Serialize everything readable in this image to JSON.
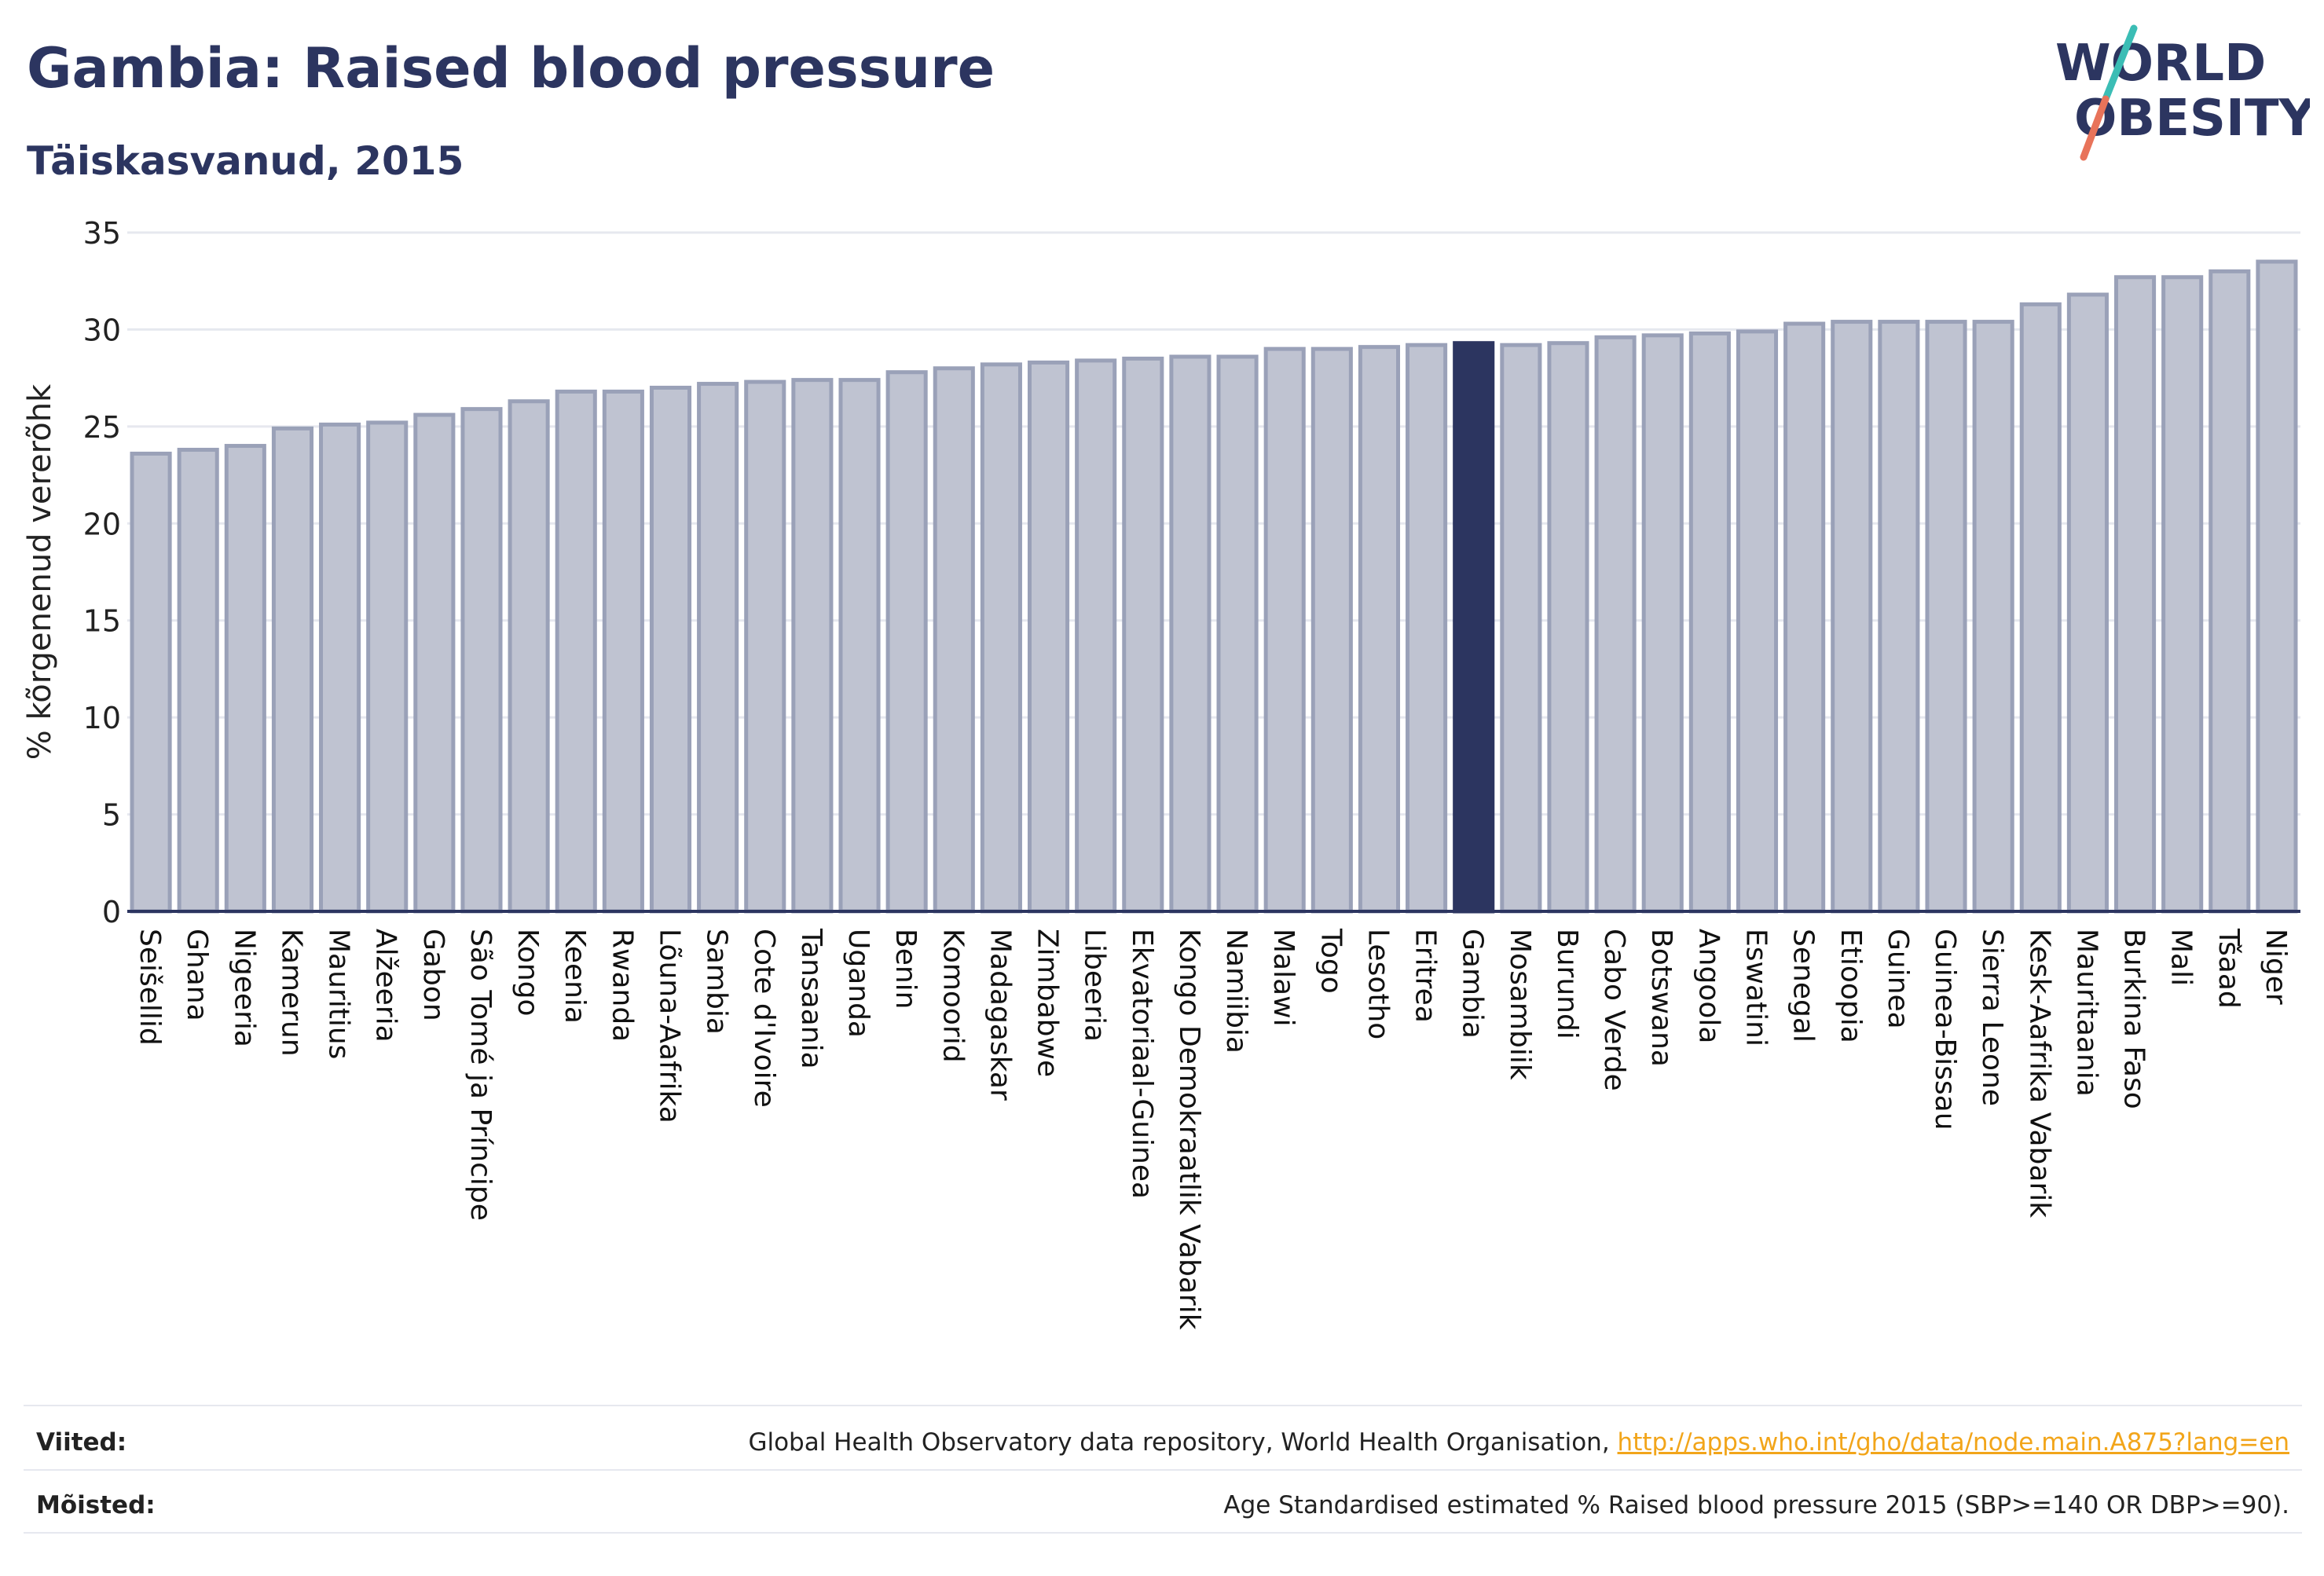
{
  "header": {
    "title": "Gambia: Raised blood pressure",
    "subtitle": "Täiskasvanud, 2015"
  },
  "logo": {
    "line1": "WORLD",
    "line2": "OBESITY",
    "colors": {
      "text": "#2c3560",
      "slash_top": "#3bbdb5",
      "slash_bottom": "#e8735a"
    }
  },
  "footer": {
    "sources_label": "Viited:",
    "sources_text": "Global Health Observatory data repository, World Health Organisation, ",
    "sources_link": "http://apps.who.int/gho/data/node.main.A875?lang=en",
    "definitions_label": "Mõisted:",
    "definitions_text": "Age Standardised estimated % Raised blood pressure 2015 (SBP>=140 OR DBP>=90)."
  },
  "chart_data": {
    "type": "bar",
    "ylabel": "% kõrgenenud vererõhk",
    "ylim": [
      0,
      35
    ],
    "yticks": [
      0,
      5,
      10,
      15,
      20,
      25,
      30,
      35
    ],
    "grid": true,
    "highlight": "Gambia",
    "colors": {
      "bar": "#bfc3d1",
      "bar_border": "#9aa1b8",
      "highlight": "#2c3560",
      "axis": "#2c3560",
      "grid": "#e6e8ef"
    },
    "categories": [
      "Seišellid",
      "Ghana",
      "Nigeeria",
      "Kamerun",
      "Mauritius",
      "Alžeeria",
      "Gabon",
      "São Tomé ja Príncipe",
      "Kongo",
      "Keenia",
      "Rwanda",
      "Lõuna-Aafrika",
      "Sambia",
      "Cote d'Ivoire",
      "Tansaania",
      "Uganda",
      "Benin",
      "Komoorid",
      "Madagaskar",
      "Zimbabwe",
      "Libeeria",
      "Ekvatoriaal-Guinea",
      "Kongo Demokraatlik Vabarik",
      "Namiibia",
      "Malawi",
      "Togo",
      "Lesotho",
      "Eritrea",
      "Gambia",
      "Mosambiik",
      "Burundi",
      "Cabo Verde",
      "Botswana",
      "Angoola",
      "Eswatini",
      "Senegal",
      "Etioopia",
      "Guinea",
      "Guinea-Bissau",
      "Sierra Leone",
      "Kesk-Aafrika Vabarik",
      "Mauritaania",
      "Burkina Faso",
      "Mali",
      "Tšaad",
      "Niger"
    ],
    "values": [
      23.6,
      23.8,
      24.0,
      24.9,
      25.1,
      25.2,
      25.6,
      25.9,
      26.3,
      26.8,
      26.8,
      27.0,
      27.2,
      27.3,
      27.4,
      27.4,
      27.8,
      28.0,
      28.2,
      28.3,
      28.4,
      28.5,
      28.6,
      28.6,
      29.0,
      29.0,
      29.1,
      29.2,
      29.3,
      29.2,
      29.3,
      29.6,
      29.7,
      29.8,
      29.9,
      30.3,
      30.4,
      30.4,
      30.4,
      30.4,
      31.3,
      31.8,
      32.7,
      32.7,
      33.0,
      33.5
    ]
  }
}
